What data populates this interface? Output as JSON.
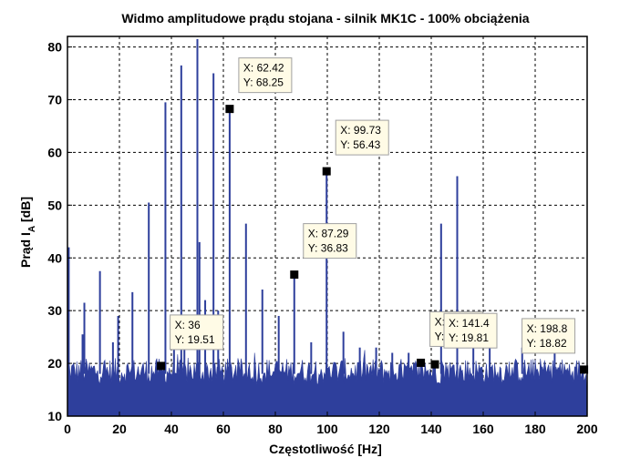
{
  "chart_data": {
    "type": "line",
    "title": "Widmo amplitudowe prądu stojana - silnik MK1C - 100% obciążenia",
    "xlabel": "Częstotliwość [Hz]",
    "ylabel": "Prąd I_A [dB]",
    "ylabel_main": "Prąd I",
    "ylabel_sub": "A",
    "ylabel_unit": " [dB]",
    "xlim": [
      0,
      200
    ],
    "ylim": [
      10,
      82
    ],
    "xticks": [
      0,
      20,
      40,
      60,
      80,
      100,
      120,
      140,
      160,
      180,
      200
    ],
    "yticks": [
      10,
      20,
      30,
      40,
      50,
      60,
      70,
      80
    ],
    "grid": true,
    "noise_floor_db": [
      16,
      21
    ],
    "colors": {
      "series": "#2e3f9c",
      "marker": "#000000",
      "datatip_bg": "#fffbe6",
      "datatip_border": "#a0a0a0"
    },
    "peaks": [
      {
        "x": 0.5,
        "y": 42
      },
      {
        "x": 5.8,
        "y": 25.5
      },
      {
        "x": 6.5,
        "y": 31.5
      },
      {
        "x": 12.5,
        "y": 37.5
      },
      {
        "x": 17.5,
        "y": 24
      },
      {
        "x": 19.5,
        "y": 29
      },
      {
        "x": 25,
        "y": 33.5
      },
      {
        "x": 31.3,
        "y": 50.5
      },
      {
        "x": 36,
        "y": 19.51
      },
      {
        "x": 37.7,
        "y": 69.5
      },
      {
        "x": 41,
        "y": 24
      },
      {
        "x": 43.8,
        "y": 76.5
      },
      {
        "x": 45,
        "y": 27
      },
      {
        "x": 50,
        "y": 81.5
      },
      {
        "x": 50.8,
        "y": 43
      },
      {
        "x": 53,
        "y": 32
      },
      {
        "x": 56.2,
        "y": 75
      },
      {
        "x": 58,
        "y": 30
      },
      {
        "x": 62.42,
        "y": 68.25
      },
      {
        "x": 68.7,
        "y": 46.5
      },
      {
        "x": 75,
        "y": 34
      },
      {
        "x": 81.3,
        "y": 29
      },
      {
        "x": 87.29,
        "y": 36.83
      },
      {
        "x": 93.8,
        "y": 24
      },
      {
        "x": 99.73,
        "y": 56.43
      },
      {
        "x": 106.2,
        "y": 26
      },
      {
        "x": 112.5,
        "y": 23
      },
      {
        "x": 118.8,
        "y": 23
      },
      {
        "x": 125,
        "y": 22
      },
      {
        "x": 131.3,
        "y": 22
      },
      {
        "x": 136,
        "y": 20.11
      },
      {
        "x": 141.4,
        "y": 19.81
      },
      {
        "x": 143.8,
        "y": 46.5
      },
      {
        "x": 150,
        "y": 55.5
      },
      {
        "x": 156.2,
        "y": 23
      },
      {
        "x": 162.5,
        "y": 24
      },
      {
        "x": 175,
        "y": 23
      },
      {
        "x": 187.5,
        "y": 23
      },
      {
        "x": 198.8,
        "y": 18.82
      }
    ],
    "datatips": [
      {
        "x": 62.42,
        "y": 68.25,
        "x_text": "X: 62.42",
        "y_text": "Y: 68.25"
      },
      {
        "x": 99.73,
        "y": 56.43,
        "x_text": "X: 99.73",
        "y_text": "Y: 56.43"
      },
      {
        "x": 87.29,
        "y": 36.83,
        "x_text": "X: 87.29",
        "y_text": "Y: 36.83"
      },
      {
        "x": 36,
        "y": 19.51,
        "x_text": "X: 36",
        "y_text": "Y: 19.51"
      },
      {
        "x": 136,
        "y": 20.11,
        "x_text": "X: 136",
        "y_text": "Y: 20.11"
      },
      {
        "x": 141.4,
        "y": 19.81,
        "x_text": "X: 141.4",
        "y_text": "Y: 19.81"
      },
      {
        "x": 198.8,
        "y": 18.82,
        "x_text": "X: 198.8",
        "y_text": "Y: 18.82"
      }
    ]
  }
}
